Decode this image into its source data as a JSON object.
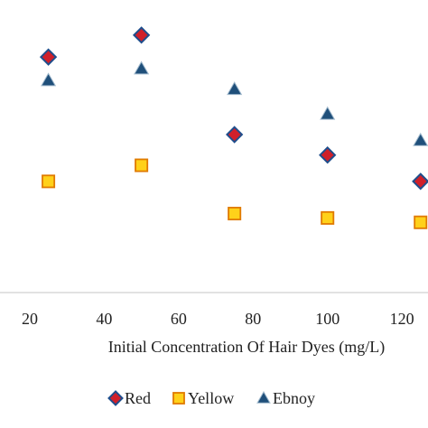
{
  "chart_data": {
    "type": "scatter",
    "xlabel": "Initial Concentration Of Hair Dyes (mg/L)",
    "ylabel": "",
    "xlim": [
      12,
      127
    ],
    "ylim": [
      0,
      100
    ],
    "xticks": [
      "20",
      "40",
      "60",
      "80",
      "100",
      "120"
    ],
    "grid": false,
    "legend_position": "bottom",
    "series": [
      {
        "name": "Red",
        "marker": "diamond",
        "color": "#d0202a",
        "edge": "#1f4e8c",
        "x": [
          25,
          50,
          75,
          100,
          125
        ],
        "y": [
          80.5,
          88.0,
          54.0,
          47.0,
          38.0
        ]
      },
      {
        "name": "Yellow",
        "marker": "square",
        "color": "#ffd11a",
        "edge": "#e07a00",
        "x": [
          25,
          50,
          75,
          100,
          125
        ],
        "y": [
          38.0,
          43.5,
          27.0,
          25.5,
          24.0
        ]
      },
      {
        "name": "Ebnoy",
        "marker": "triangle",
        "color": "#1f4f7a",
        "edge": "#9fb8cc",
        "x": [
          25,
          50,
          75,
          100,
          125
        ],
        "y": [
          72.5,
          76.5,
          69.5,
          61.0,
          52.0
        ]
      }
    ]
  }
}
